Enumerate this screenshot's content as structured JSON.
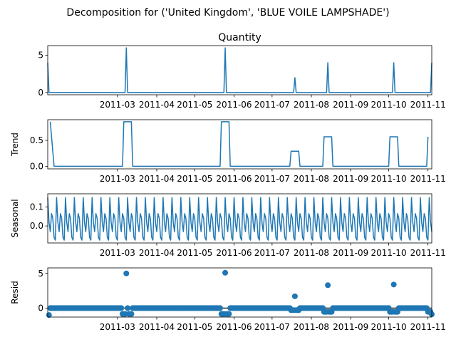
{
  "suptitle": "Decomposition for ('United Kingdom', 'BLUE  VOILE LAMPSHADE')",
  "colors": {
    "line": "#1f77b4",
    "axis": "#000000"
  },
  "chart_data": [
    {
      "type": "line",
      "title": "Quantity",
      "ylabel": "",
      "x_range": [
        "2011-01-05",
        "2011-11-04"
      ],
      "ylim": [
        -0.3,
        6.3
      ],
      "yticks": [
        0,
        5
      ],
      "xticks": [
        "2011-03",
        "2011-04",
        "2011-05",
        "2011-06",
        "2011-07",
        "2011-08",
        "2011-09",
        "2011-10",
        "2011-11"
      ],
      "series": [
        {
          "points": [
            [
              "2011-01-05",
              4.0
            ],
            [
              "2011-01-06",
              0
            ],
            [
              "2011-03-07",
              0
            ],
            [
              "2011-03-08",
              6
            ],
            [
              "2011-03-09",
              0
            ],
            [
              "2011-05-24",
              0
            ],
            [
              "2011-05-25",
              6
            ],
            [
              "2011-05-26",
              0
            ],
            [
              "2011-07-18",
              0
            ],
            [
              "2011-07-19",
              2
            ],
            [
              "2011-07-20",
              0
            ],
            [
              "2011-08-13",
              0
            ],
            [
              "2011-08-14",
              4
            ],
            [
              "2011-08-15",
              0
            ],
            [
              "2011-10-04",
              0
            ],
            [
              "2011-10-05",
              4
            ],
            [
              "2011-10-06",
              0
            ],
            [
              "2011-11-03",
              0
            ],
            [
              "2011-11-04",
              4
            ]
          ]
        }
      ]
    },
    {
      "type": "line",
      "title": "",
      "ylabel": "Trend",
      "x_range": [
        "2011-01-05",
        "2011-11-04"
      ],
      "ylim": [
        -0.05,
        0.9
      ],
      "yticks": [
        0.0,
        0.5
      ],
      "yticklabels": [
        "0.0",
        "0.5"
      ],
      "xticks": [
        "2011-03",
        "2011-04",
        "2011-05",
        "2011-06",
        "2011-07",
        "2011-08",
        "2011-09",
        "2011-10",
        "2011-11"
      ],
      "series": [
        {
          "points": [
            [
              "2011-01-07",
              0.86
            ],
            [
              "2011-01-10",
              0
            ],
            [
              "2011-03-05",
              0
            ],
            [
              "2011-03-06",
              0.86
            ],
            [
              "2011-03-12",
              0.86
            ],
            [
              "2011-03-13",
              0
            ],
            [
              "2011-05-21",
              0
            ],
            [
              "2011-05-22",
              0.86
            ],
            [
              "2011-05-28",
              0.86
            ],
            [
              "2011-05-29",
              0
            ],
            [
              "2011-07-15",
              0
            ],
            [
              "2011-07-16",
              0.29
            ],
            [
              "2011-07-22",
              0.29
            ],
            [
              "2011-07-23",
              0
            ],
            [
              "2011-08-10",
              0
            ],
            [
              "2011-08-11",
              0.57
            ],
            [
              "2011-08-17",
              0.57
            ],
            [
              "2011-08-18",
              0
            ],
            [
              "2011-10-01",
              0
            ],
            [
              "2011-10-02",
              0.57
            ],
            [
              "2011-10-08",
              0.57
            ],
            [
              "2011-10-09",
              0
            ],
            [
              "2011-10-31",
              0
            ],
            [
              "2011-11-01",
              0.57
            ]
          ]
        }
      ]
    },
    {
      "type": "line",
      "title": "",
      "ylabel": "Seasonal",
      "x_range": [
        "2011-01-05",
        "2011-11-04"
      ],
      "ylim": [
        -0.09,
        0.17
      ],
      "yticks": [
        0.0,
        0.1
      ],
      "yticklabels": [
        "0.0",
        "0.1"
      ],
      "xticks": [
        "2011-03",
        "2011-04",
        "2011-05",
        "2011-06",
        "2011-07",
        "2011-08",
        "2011-09",
        "2011-10",
        "2011-11"
      ],
      "period_days": 7,
      "weekly_pattern": [
        0.15,
        0.02,
        -0.03,
        0.065,
        0.04,
        -0.06,
        -0.075
      ],
      "series": [
        {
          "start": "2011-01-05",
          "end": "2011-11-04"
        }
      ]
    },
    {
      "type": "scatter",
      "title": "",
      "ylabel": "Resid",
      "x_range": [
        "2011-01-05",
        "2011-11-04"
      ],
      "ylim": [
        -1.3,
        5.8
      ],
      "yticks": [
        0,
        5
      ],
      "xticks": [
        "2011-03",
        "2011-04",
        "2011-05",
        "2011-06",
        "2011-07",
        "2011-08",
        "2011-09",
        "2011-10",
        "2011-11"
      ],
      "zero_line": true,
      "outliers": [
        [
          "2011-01-06",
          -1.0
        ],
        [
          "2011-03-08",
          5.0
        ],
        [
          "2011-05-25",
          5.1
        ],
        [
          "2011-07-19",
          1.7
        ],
        [
          "2011-08-14",
          3.3
        ],
        [
          "2011-10-05",
          3.4
        ],
        [
          "2011-03-05",
          -0.85
        ],
        [
          "2011-03-06",
          -0.85
        ],
        [
          "2011-03-07",
          -0.85
        ],
        [
          "2011-03-10",
          -0.85
        ],
        [
          "2011-03-11",
          -0.85
        ],
        [
          "2011-03-12",
          -0.85
        ],
        [
          "2011-05-22",
          -0.85
        ],
        [
          "2011-05-23",
          -0.85
        ],
        [
          "2011-05-24",
          -0.85
        ],
        [
          "2011-05-26",
          -0.85
        ],
        [
          "2011-05-27",
          -0.85
        ],
        [
          "2011-05-28",
          -0.85
        ],
        [
          "2011-07-16",
          -0.3
        ],
        [
          "2011-07-17",
          -0.3
        ],
        [
          "2011-07-18",
          -0.3
        ],
        [
          "2011-07-20",
          -0.3
        ],
        [
          "2011-07-21",
          -0.3
        ],
        [
          "2011-07-22",
          -0.3
        ],
        [
          "2011-08-11",
          -0.55
        ],
        [
          "2011-08-12",
          -0.55
        ],
        [
          "2011-08-13",
          -0.55
        ],
        [
          "2011-08-15",
          -0.55
        ],
        [
          "2011-08-16",
          -0.55
        ],
        [
          "2011-08-17",
          -0.55
        ],
        [
          "2011-10-02",
          -0.55
        ],
        [
          "2011-10-03",
          -0.55
        ],
        [
          "2011-10-04",
          -0.55
        ],
        [
          "2011-10-06",
          -0.55
        ],
        [
          "2011-10-07",
          -0.55
        ],
        [
          "2011-10-08",
          -0.55
        ],
        [
          "2011-11-01",
          -0.55
        ],
        [
          "2011-11-02",
          -0.55
        ],
        [
          "2011-11-03",
          -0.55
        ],
        [
          "2011-11-04",
          -0.9
        ]
      ],
      "baseline_range": [
        "2011-01-07",
        "2011-11-04"
      ],
      "baseline_value": 0.0
    }
  ]
}
